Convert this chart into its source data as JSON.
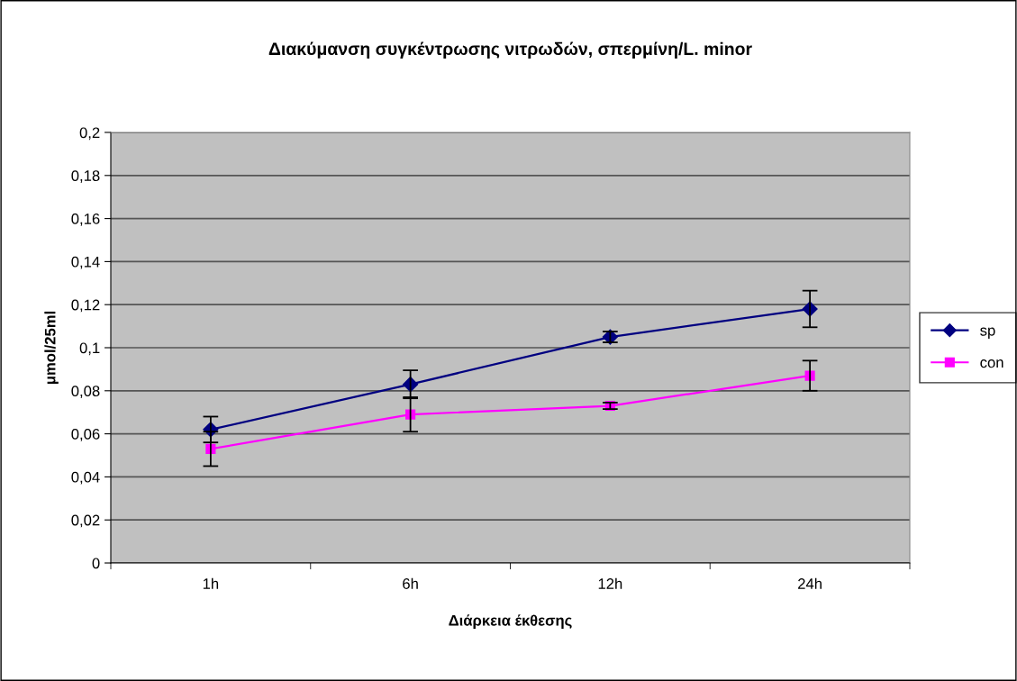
{
  "chart_data": {
    "type": "line",
    "title": "Διακύμανση συγκέντρωσης νιτρωδών, σπερμίνη/L. minor",
    "xlabel": "Διάρκεια έκθεσης",
    "ylabel": "μmol/25ml",
    "categories": [
      "1h",
      "6h",
      "12h",
      "24h"
    ],
    "series": [
      {
        "name": "sp",
        "color": "#000080",
        "marker": "diamond",
        "values": [
          0.062,
          0.083,
          0.105,
          0.118
        ],
        "errors": [
          0.006,
          0.0065,
          0.0025,
          0.0085
        ]
      },
      {
        "name": "con",
        "color": "#ff00ff",
        "marker": "square",
        "values": [
          0.053,
          0.069,
          0.073,
          0.087
        ],
        "errors": [
          0.008,
          0.008,
          0.0015,
          0.007
        ]
      }
    ],
    "ylim": [
      0,
      0.2
    ],
    "yticks": [
      {
        "value": 0,
        "label": "0"
      },
      {
        "value": 0.02,
        "label": "0,02"
      },
      {
        "value": 0.04,
        "label": "0,04"
      },
      {
        "value": 0.06,
        "label": "0,06"
      },
      {
        "value": 0.08,
        "label": "0,08"
      },
      {
        "value": 0.1,
        "label": "0,1"
      },
      {
        "value": 0.12,
        "label": "0,12"
      },
      {
        "value": 0.14,
        "label": "0,14"
      },
      {
        "value": 0.16,
        "label": "0,16"
      },
      {
        "value": 0.18,
        "label": "0,18"
      },
      {
        "value": 0.2,
        "label": "0,2"
      }
    ],
    "grid": "y",
    "legend": "right"
  }
}
